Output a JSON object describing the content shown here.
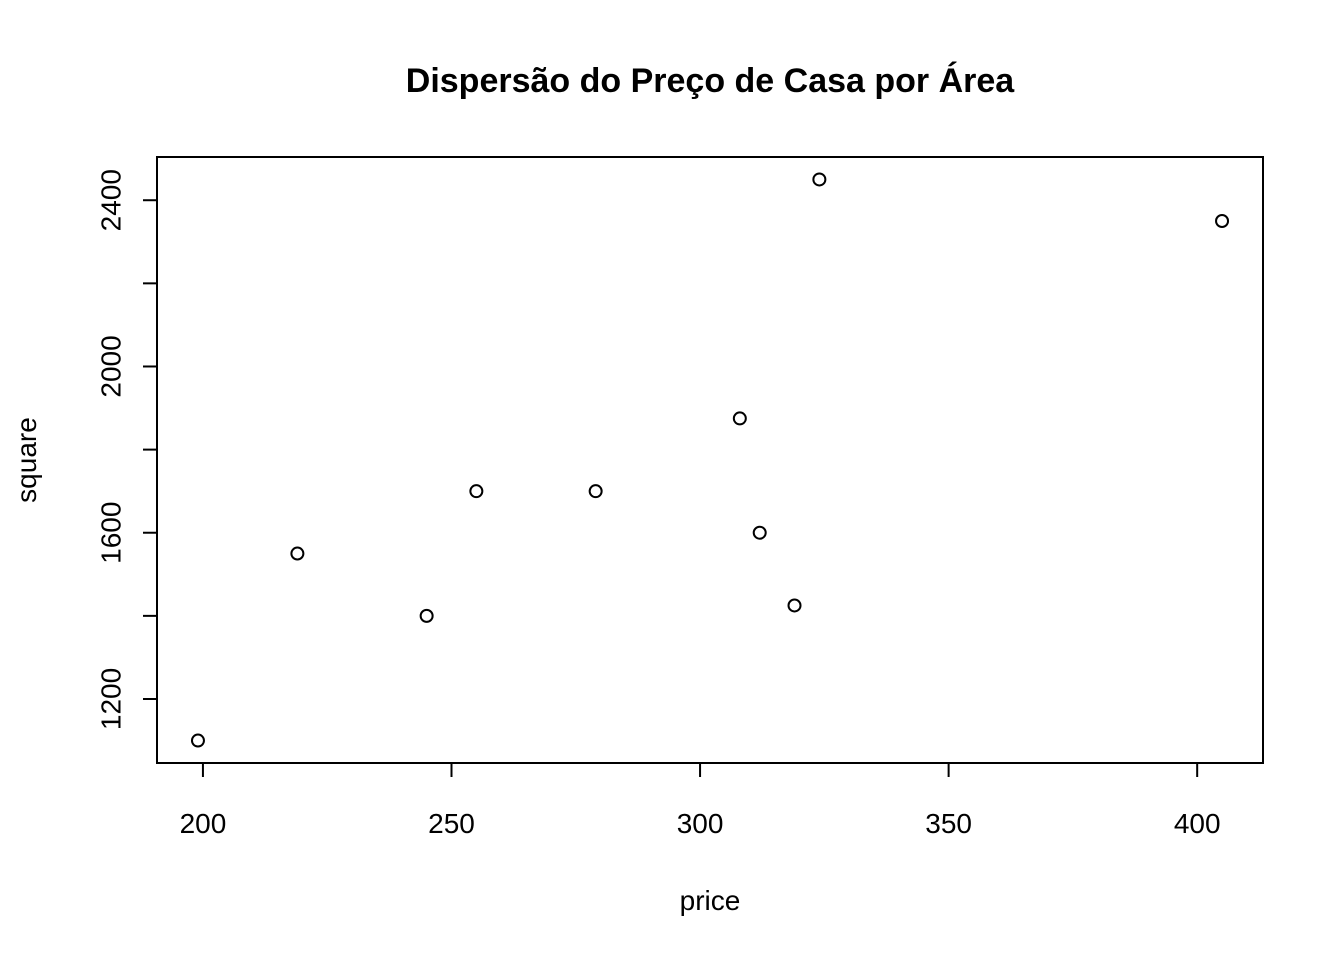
{
  "chart_data": {
    "type": "scatter",
    "title": "Dispersão do Preço de Casa por Área",
    "x_label": "price",
    "y_label": "square",
    "series": [
      {
        "color": "#000000",
        "x": [
          199,
          219,
          245,
          255,
          279,
          308,
          312,
          319,
          324,
          405
        ],
        "values": [
          1100,
          1550,
          1400,
          1700,
          1700,
          1875,
          1600,
          1425,
          2450,
          2350
        ]
      }
    ],
    "xlim": [
      190.76,
      413.24
    ],
    "ylim": [
      1046,
      2504
    ],
    "xticks": [
      200,
      250,
      300,
      350,
      400
    ],
    "yticks": [
      1200,
      {
        "value": 1400,
        "label": null
      },
      1600,
      {
        "value": 1800,
        "label": null
      },
      2000,
      {
        "value": 2200,
        "label": null
      },
      2400
    ],
    "grid": false
  }
}
